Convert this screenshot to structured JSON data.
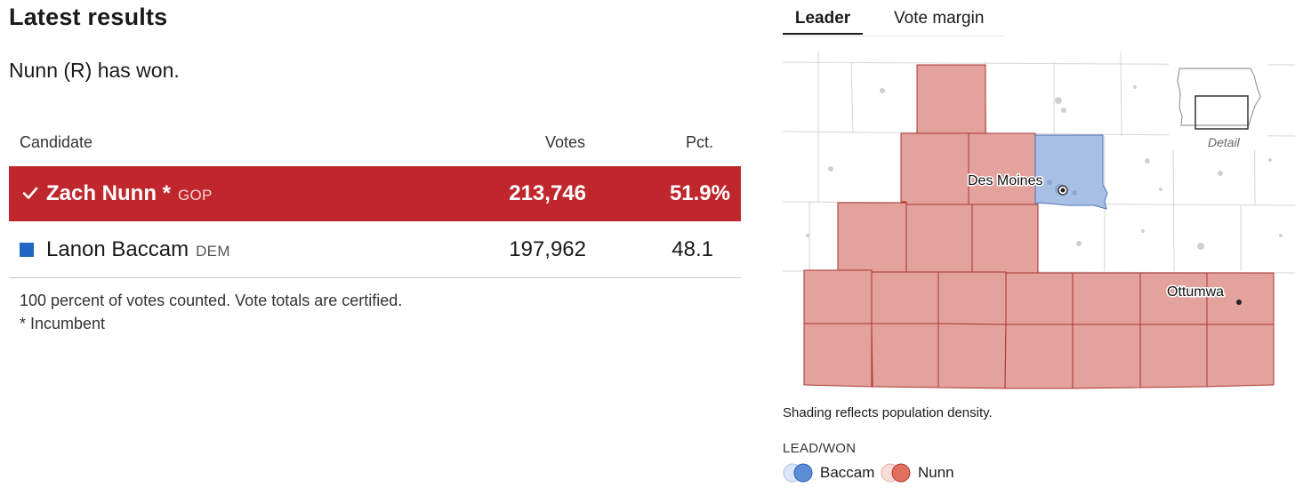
{
  "results": {
    "heading": "Latest results",
    "status": "Nunn (R) has won.",
    "columns": {
      "candidate": "Candidate",
      "votes": "Votes",
      "pct": "Pct."
    },
    "candidates": [
      {
        "name": "Zach Nunn",
        "incumbent_mark": "*",
        "party": "GOP",
        "votes": "213,746",
        "pct": "51.9%",
        "winner": true
      },
      {
        "name": "Lanon Baccam",
        "party": "DEM",
        "votes": "197,962",
        "pct": "48.1",
        "winner": false
      }
    ],
    "footnote_counted": "100 percent of votes counted. Vote totals are certified.",
    "footnote_incumbent": "* Incumbent"
  },
  "map_panel": {
    "tabs": [
      {
        "label": "Leader"
      },
      {
        "label": "Vote margin"
      }
    ],
    "city_des_moines": "Des Moines",
    "city_ottumwa": "Ottumwa",
    "inset_label": "Detail",
    "caption": "Shading reflects population density.",
    "legend_title": "LEAD/WON",
    "legend": [
      {
        "label": "Baccam"
      },
      {
        "label": "Nunn"
      }
    ]
  },
  "colors": {
    "gop": "#c0272d",
    "dem": "#1f67c2",
    "gop_fill": "#e4a29c",
    "dem_fill": "#a8bfe4",
    "gop_legend": "#e06f5f",
    "dem_legend": "#5b8ed6"
  }
}
